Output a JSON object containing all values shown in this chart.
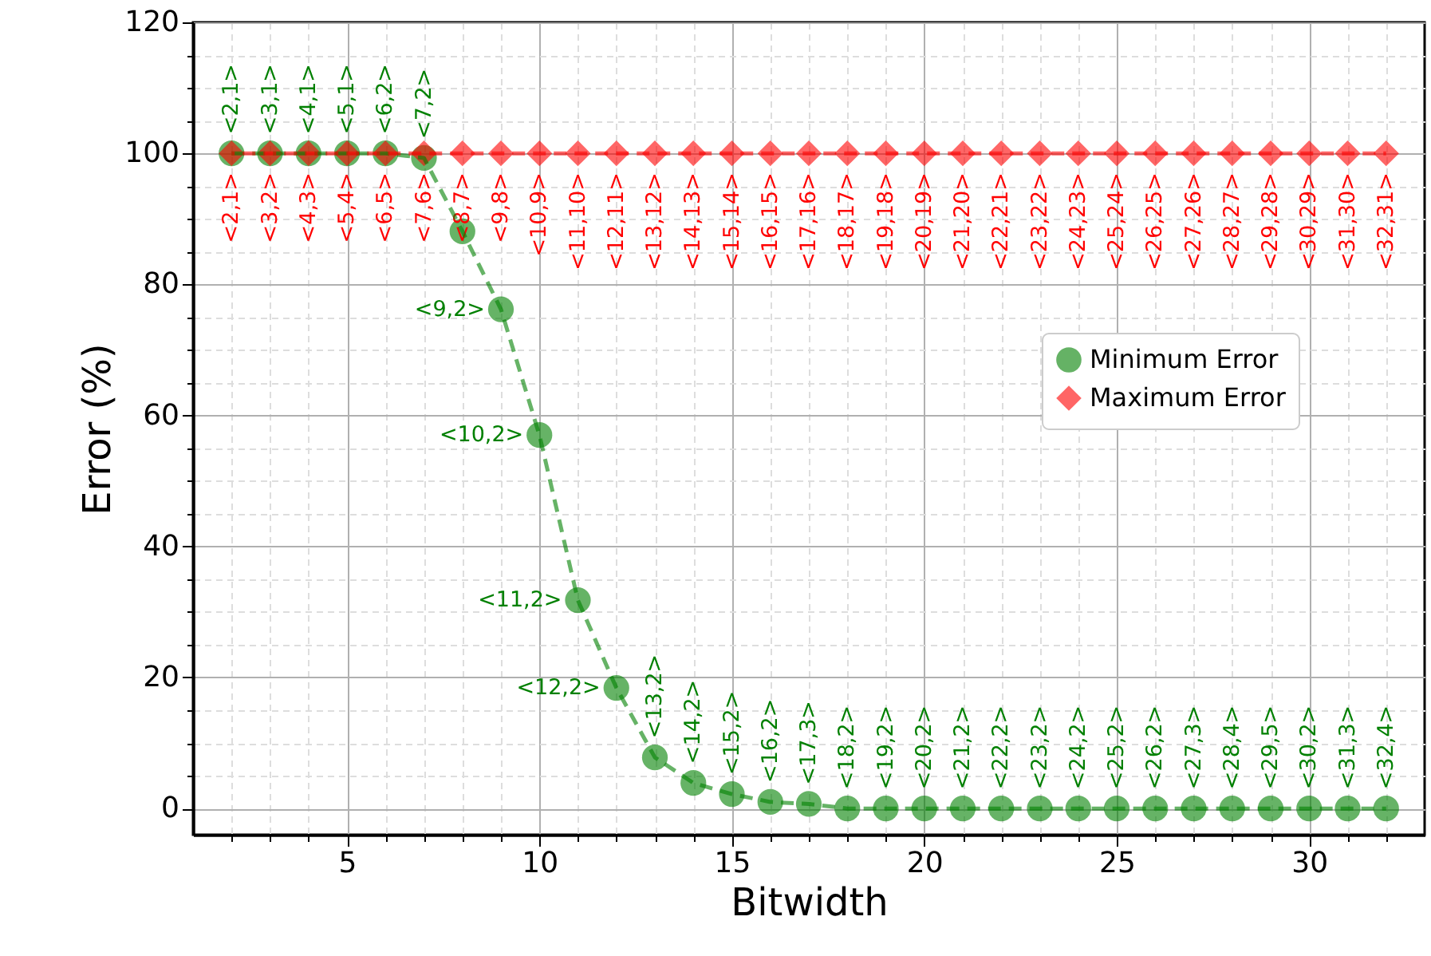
{
  "chart_data": {
    "type": "line",
    "xlabel": "Bitwidth",
    "ylabel": "Error (%)",
    "x": [
      2,
      3,
      4,
      5,
      6,
      7,
      8,
      9,
      10,
      11,
      12,
      13,
      14,
      15,
      16,
      17,
      18,
      19,
      20,
      21,
      22,
      23,
      24,
      25,
      26,
      27,
      28,
      29,
      30,
      31,
      32
    ],
    "xlim": [
      1,
      33
    ],
    "ylim": [
      -4,
      120
    ],
    "xticks": [
      {
        "value": 2,
        "label": null
      },
      {
        "value": 3,
        "label": null
      },
      {
        "value": 4,
        "label": null
      },
      5,
      {
        "value": 6,
        "label": null
      },
      {
        "value": 7,
        "label": null
      },
      {
        "value": 8,
        "label": null
      },
      {
        "value": 9,
        "label": null
      },
      10,
      {
        "value": 11,
        "label": null
      },
      {
        "value": 12,
        "label": null
      },
      {
        "value": 13,
        "label": null
      },
      {
        "value": 14,
        "label": null
      },
      15,
      {
        "value": 16,
        "label": null
      },
      {
        "value": 17,
        "label": null
      },
      {
        "value": 18,
        "label": null
      },
      {
        "value": 19,
        "label": null
      },
      20,
      {
        "value": 21,
        "label": null
      },
      {
        "value": 22,
        "label": null
      },
      {
        "value": 23,
        "label": null
      },
      {
        "value": 24,
        "label": null
      },
      25,
      {
        "value": 26,
        "label": null
      },
      {
        "value": 27,
        "label": null
      },
      {
        "value": 28,
        "label": null
      },
      {
        "value": 29,
        "label": null
      },
      30,
      {
        "value": 31,
        "label": null
      },
      {
        "value": 32,
        "label": null
      }
    ],
    "yticks": [
      0,
      {
        "value": 5,
        "label": null
      },
      {
        "value": 10,
        "label": null
      },
      {
        "value": 15,
        "label": null
      },
      20,
      {
        "value": 25,
        "label": null
      },
      {
        "value": 30,
        "label": null
      },
      {
        "value": 35,
        "label": null
      },
      40,
      {
        "value": 45,
        "label": null
      },
      {
        "value": 50,
        "label": null
      },
      {
        "value": 55,
        "label": null
      },
      60,
      {
        "value": 65,
        "label": null
      },
      {
        "value": 70,
        "label": null
      },
      {
        "value": 75,
        "label": null
      },
      80,
      {
        "value": 85,
        "label": null
      },
      {
        "value": 90,
        "label": null
      },
      {
        "value": 95,
        "label": null
      },
      100,
      {
        "value": 105,
        "label": null
      },
      {
        "value": 110,
        "label": null
      },
      {
        "value": 115,
        "label": null
      },
      120
    ],
    "grid": true,
    "legend": "right",
    "line_style": "dashed",
    "series": [
      {
        "name": "Minimum Error",
        "color": "#008000",
        "marker": "circle",
        "values": [
          100,
          100,
          100,
          100,
          100,
          99.3,
          88.1,
          76.2,
          57.0,
          31.8,
          18.4,
          7.8,
          3.9,
          2.2,
          1.0,
          0.7,
          0,
          0,
          0,
          0,
          0,
          0,
          0,
          0,
          0,
          0,
          0,
          0,
          0,
          0,
          0
        ],
        "value_labels": [
          "<2,1>",
          "<3,1>",
          "<4,1>",
          "<5,1>",
          "<6,2>",
          "<7,2>",
          null,
          "<9,2>",
          "<10,2>",
          "<11,2>",
          "<12,2>",
          "<13,2>",
          "<14,2>",
          "<15,2>",
          "<16,2>",
          "<17,3>",
          "<18,2>",
          "<19,2>",
          "<20,2>",
          "<21,2>",
          "<22,2>",
          "<23,2>",
          "<24,2>",
          "<25,2>",
          "<26,2>",
          "<27,3>",
          "<28,4>",
          "<29,5>",
          "<30,2>",
          "<31,3>",
          "<32,4>"
        ]
      },
      {
        "name": "Maximum Error",
        "color": "#ff0000",
        "marker": "diamond",
        "values": [
          100,
          100,
          100,
          100,
          100,
          100,
          100,
          100,
          100,
          100,
          100,
          100,
          100,
          100,
          100,
          100,
          100,
          100,
          100,
          100,
          100,
          100,
          100,
          100,
          100,
          100,
          100,
          100,
          100,
          100,
          100
        ],
        "value_labels": [
          "<2,1>",
          "<3,2>",
          "<4,3>",
          "<5,4>",
          "<6,5>",
          "<7,6>",
          "<8,7>",
          "<9,8>",
          "<10,9>",
          "<11,10>",
          "<12,11>",
          "<13,12>",
          "<14,13>",
          "<15,14>",
          "<16,15>",
          "<17,16>",
          "<18,17>",
          "<19,18>",
          "<20,19>",
          "<21,20>",
          "<22,21>",
          "<23,22>",
          "<24,23>",
          "<25,24>",
          "<26,25>",
          "<27,26>",
          "<28,27>",
          "<29,28>",
          "<30,29>",
          "<31,30>",
          "<32,31>"
        ]
      }
    ]
  }
}
